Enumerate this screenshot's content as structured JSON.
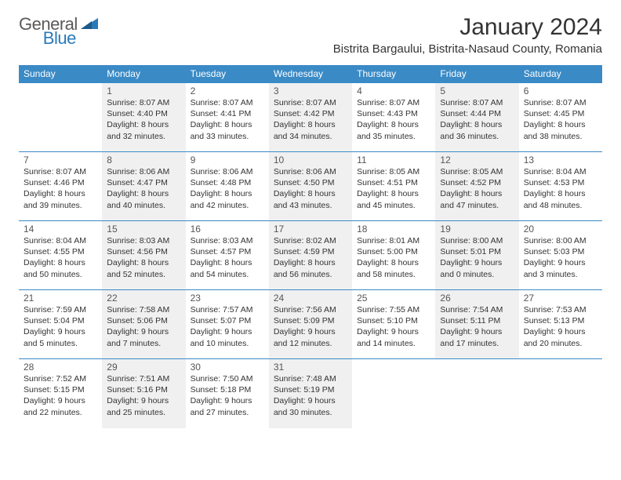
{
  "logo": {
    "text_gray": "General",
    "text_blue": "Blue"
  },
  "title": "January 2024",
  "location": "Bistrita Bargaului, Bistrita-Nasaud County, Romania",
  "colors": {
    "header_bg": "#3a8ac6",
    "header_text": "#ffffff",
    "shaded_bg": "#f0f0f0",
    "border": "#3a8ac6",
    "logo_gray": "#5a5a5a",
    "logo_blue": "#2a7ab8"
  },
  "day_names": [
    "Sunday",
    "Monday",
    "Tuesday",
    "Wednesday",
    "Thursday",
    "Friday",
    "Saturday"
  ],
  "weeks": [
    [
      {
        "num": "",
        "sunrise": "",
        "sunset": "",
        "daylight": "",
        "shaded": false
      },
      {
        "num": "1",
        "sunrise": "Sunrise: 8:07 AM",
        "sunset": "Sunset: 4:40 PM",
        "daylight": "Daylight: 8 hours and 32 minutes.",
        "shaded": true
      },
      {
        "num": "2",
        "sunrise": "Sunrise: 8:07 AM",
        "sunset": "Sunset: 4:41 PM",
        "daylight": "Daylight: 8 hours and 33 minutes.",
        "shaded": false
      },
      {
        "num": "3",
        "sunrise": "Sunrise: 8:07 AM",
        "sunset": "Sunset: 4:42 PM",
        "daylight": "Daylight: 8 hours and 34 minutes.",
        "shaded": true
      },
      {
        "num": "4",
        "sunrise": "Sunrise: 8:07 AM",
        "sunset": "Sunset: 4:43 PM",
        "daylight": "Daylight: 8 hours and 35 minutes.",
        "shaded": false
      },
      {
        "num": "5",
        "sunrise": "Sunrise: 8:07 AM",
        "sunset": "Sunset: 4:44 PM",
        "daylight": "Daylight: 8 hours and 36 minutes.",
        "shaded": true
      },
      {
        "num": "6",
        "sunrise": "Sunrise: 8:07 AM",
        "sunset": "Sunset: 4:45 PM",
        "daylight": "Daylight: 8 hours and 38 minutes.",
        "shaded": false
      }
    ],
    [
      {
        "num": "7",
        "sunrise": "Sunrise: 8:07 AM",
        "sunset": "Sunset: 4:46 PM",
        "daylight": "Daylight: 8 hours and 39 minutes.",
        "shaded": false
      },
      {
        "num": "8",
        "sunrise": "Sunrise: 8:06 AM",
        "sunset": "Sunset: 4:47 PM",
        "daylight": "Daylight: 8 hours and 40 minutes.",
        "shaded": true
      },
      {
        "num": "9",
        "sunrise": "Sunrise: 8:06 AM",
        "sunset": "Sunset: 4:48 PM",
        "daylight": "Daylight: 8 hours and 42 minutes.",
        "shaded": false
      },
      {
        "num": "10",
        "sunrise": "Sunrise: 8:06 AM",
        "sunset": "Sunset: 4:50 PM",
        "daylight": "Daylight: 8 hours and 43 minutes.",
        "shaded": true
      },
      {
        "num": "11",
        "sunrise": "Sunrise: 8:05 AM",
        "sunset": "Sunset: 4:51 PM",
        "daylight": "Daylight: 8 hours and 45 minutes.",
        "shaded": false
      },
      {
        "num": "12",
        "sunrise": "Sunrise: 8:05 AM",
        "sunset": "Sunset: 4:52 PM",
        "daylight": "Daylight: 8 hours and 47 minutes.",
        "shaded": true
      },
      {
        "num": "13",
        "sunrise": "Sunrise: 8:04 AM",
        "sunset": "Sunset: 4:53 PM",
        "daylight": "Daylight: 8 hours and 48 minutes.",
        "shaded": false
      }
    ],
    [
      {
        "num": "14",
        "sunrise": "Sunrise: 8:04 AM",
        "sunset": "Sunset: 4:55 PM",
        "daylight": "Daylight: 8 hours and 50 minutes.",
        "shaded": false
      },
      {
        "num": "15",
        "sunrise": "Sunrise: 8:03 AM",
        "sunset": "Sunset: 4:56 PM",
        "daylight": "Daylight: 8 hours and 52 minutes.",
        "shaded": true
      },
      {
        "num": "16",
        "sunrise": "Sunrise: 8:03 AM",
        "sunset": "Sunset: 4:57 PM",
        "daylight": "Daylight: 8 hours and 54 minutes.",
        "shaded": false
      },
      {
        "num": "17",
        "sunrise": "Sunrise: 8:02 AM",
        "sunset": "Sunset: 4:59 PM",
        "daylight": "Daylight: 8 hours and 56 minutes.",
        "shaded": true
      },
      {
        "num": "18",
        "sunrise": "Sunrise: 8:01 AM",
        "sunset": "Sunset: 5:00 PM",
        "daylight": "Daylight: 8 hours and 58 minutes.",
        "shaded": false
      },
      {
        "num": "19",
        "sunrise": "Sunrise: 8:00 AM",
        "sunset": "Sunset: 5:01 PM",
        "daylight": "Daylight: 9 hours and 0 minutes.",
        "shaded": true
      },
      {
        "num": "20",
        "sunrise": "Sunrise: 8:00 AM",
        "sunset": "Sunset: 5:03 PM",
        "daylight": "Daylight: 9 hours and 3 minutes.",
        "shaded": false
      }
    ],
    [
      {
        "num": "21",
        "sunrise": "Sunrise: 7:59 AM",
        "sunset": "Sunset: 5:04 PM",
        "daylight": "Daylight: 9 hours and 5 minutes.",
        "shaded": false
      },
      {
        "num": "22",
        "sunrise": "Sunrise: 7:58 AM",
        "sunset": "Sunset: 5:06 PM",
        "daylight": "Daylight: 9 hours and 7 minutes.",
        "shaded": true
      },
      {
        "num": "23",
        "sunrise": "Sunrise: 7:57 AM",
        "sunset": "Sunset: 5:07 PM",
        "daylight": "Daylight: 9 hours and 10 minutes.",
        "shaded": false
      },
      {
        "num": "24",
        "sunrise": "Sunrise: 7:56 AM",
        "sunset": "Sunset: 5:09 PM",
        "daylight": "Daylight: 9 hours and 12 minutes.",
        "shaded": true
      },
      {
        "num": "25",
        "sunrise": "Sunrise: 7:55 AM",
        "sunset": "Sunset: 5:10 PM",
        "daylight": "Daylight: 9 hours and 14 minutes.",
        "shaded": false
      },
      {
        "num": "26",
        "sunrise": "Sunrise: 7:54 AM",
        "sunset": "Sunset: 5:11 PM",
        "daylight": "Daylight: 9 hours and 17 minutes.",
        "shaded": true
      },
      {
        "num": "27",
        "sunrise": "Sunrise: 7:53 AM",
        "sunset": "Sunset: 5:13 PM",
        "daylight": "Daylight: 9 hours and 20 minutes.",
        "shaded": false
      }
    ],
    [
      {
        "num": "28",
        "sunrise": "Sunrise: 7:52 AM",
        "sunset": "Sunset: 5:15 PM",
        "daylight": "Daylight: 9 hours and 22 minutes.",
        "shaded": false
      },
      {
        "num": "29",
        "sunrise": "Sunrise: 7:51 AM",
        "sunset": "Sunset: 5:16 PM",
        "daylight": "Daylight: 9 hours and 25 minutes.",
        "shaded": true
      },
      {
        "num": "30",
        "sunrise": "Sunrise: 7:50 AM",
        "sunset": "Sunset: 5:18 PM",
        "daylight": "Daylight: 9 hours and 27 minutes.",
        "shaded": false
      },
      {
        "num": "31",
        "sunrise": "Sunrise: 7:48 AM",
        "sunset": "Sunset: 5:19 PM",
        "daylight": "Daylight: 9 hours and 30 minutes.",
        "shaded": true
      },
      {
        "num": "",
        "sunrise": "",
        "sunset": "",
        "daylight": "",
        "shaded": false
      },
      {
        "num": "",
        "sunrise": "",
        "sunset": "",
        "daylight": "",
        "shaded": false
      },
      {
        "num": "",
        "sunrise": "",
        "sunset": "",
        "daylight": "",
        "shaded": false
      }
    ]
  ]
}
